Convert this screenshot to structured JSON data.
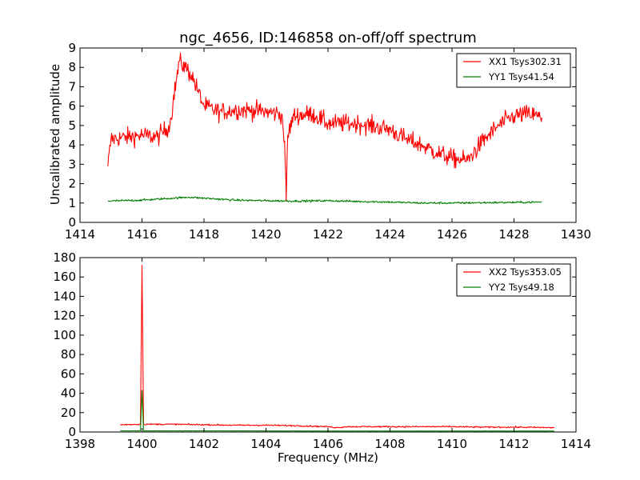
{
  "chart_data": [
    {
      "type": "line",
      "title": "ngc_4656, ID:146858 on-off/off spectrum",
      "xlabel": "",
      "ylabel": "Uncalibrated amplitude",
      "xlim": [
        1414,
        1430
      ],
      "ylim": [
        0,
        9
      ],
      "x_ticks": [
        1414,
        1416,
        1418,
        1420,
        1422,
        1424,
        1426,
        1428,
        1430
      ],
      "y_ticks": [
        0,
        1,
        2,
        3,
        4,
        5,
        6,
        7,
        8,
        9
      ],
      "legend_position": "top-right",
      "x_range": [
        1414.9,
        1428.9
      ],
      "series": [
        {
          "name": "XX1 Tsys302.31",
          "color": "#ff0000",
          "noise": 0.45,
          "points": [
            [
              1414.9,
              2.9
            ],
            [
              1415.0,
              4.3
            ],
            [
              1415.5,
              4.4
            ],
            [
              1416.0,
              4.5
            ],
            [
              1416.5,
              4.4
            ],
            [
              1416.9,
              5.0
            ],
            [
              1417.0,
              6.2
            ],
            [
              1417.2,
              8.3
            ],
            [
              1417.4,
              8.0
            ],
            [
              1417.6,
              7.6
            ],
            [
              1417.8,
              6.8
            ],
            [
              1418.0,
              6.0
            ],
            [
              1418.5,
              5.7
            ],
            [
              1419.0,
              5.8
            ],
            [
              1419.5,
              5.8
            ],
            [
              1420.0,
              5.7
            ],
            [
              1420.5,
              5.6
            ],
            [
              1420.6,
              4.2
            ],
            [
              1420.65,
              1.1
            ],
            [
              1420.7,
              4.5
            ],
            [
              1420.9,
              5.5
            ],
            [
              1421.5,
              5.6
            ],
            [
              1422.0,
              5.1
            ],
            [
              1423.0,
              5.1
            ],
            [
              1424.0,
              4.8
            ],
            [
              1424.5,
              4.3
            ],
            [
              1425.0,
              4.0
            ],
            [
              1425.5,
              3.6
            ],
            [
              1426.0,
              3.3
            ],
            [
              1426.5,
              3.2
            ],
            [
              1427.0,
              4.2
            ],
            [
              1427.5,
              5.0
            ],
            [
              1428.0,
              5.5
            ],
            [
              1428.5,
              5.6
            ],
            [
              1428.9,
              5.4
            ]
          ]
        },
        {
          "name": "YY1 Tsys41.54",
          "color": "#007f00",
          "noise": 0.05,
          "points": [
            [
              1414.9,
              1.1
            ],
            [
              1416.0,
              1.15
            ],
            [
              1417.0,
              1.25
            ],
            [
              1417.5,
              1.3
            ],
            [
              1418.0,
              1.25
            ],
            [
              1419.0,
              1.15
            ],
            [
              1420.0,
              1.12
            ],
            [
              1421.0,
              1.1
            ],
            [
              1422.0,
              1.12
            ],
            [
              1423.0,
              1.08
            ],
            [
              1424.0,
              1.05
            ],
            [
              1425.0,
              1.0
            ],
            [
              1426.0,
              1.0
            ],
            [
              1427.0,
              1.02
            ],
            [
              1428.0,
              1.03
            ],
            [
              1428.9,
              1.05
            ]
          ]
        }
      ]
    },
    {
      "type": "line",
      "title": "",
      "xlabel": "Frequency (MHz)",
      "ylabel": "",
      "xlim": [
        1398,
        1414
      ],
      "ylim": [
        0,
        180
      ],
      "x_ticks": [
        1398,
        1400,
        1402,
        1404,
        1406,
        1408,
        1410,
        1412,
        1414
      ],
      "y_ticks": [
        0,
        20,
        40,
        60,
        80,
        100,
        120,
        140,
        160,
        180
      ],
      "legend_position": "top-right",
      "x_range": [
        1399.3,
        1413.3
      ],
      "series": [
        {
          "name": "XX2 Tsys353.05",
          "color": "#ff0000",
          "noise": 0.7,
          "points": [
            [
              1399.3,
              7.5
            ],
            [
              1399.95,
              8.0
            ],
            [
              1400.0,
              172
            ],
            [
              1400.05,
              8.0
            ],
            [
              1401.0,
              8.0
            ],
            [
              1402.0,
              7.5
            ],
            [
              1403.0,
              7.0
            ],
            [
              1404.0,
              7.0
            ],
            [
              1405.0,
              6.5
            ],
            [
              1406.0,
              5.5
            ],
            [
              1406.3,
              4.5
            ],
            [
              1406.6,
              5.5
            ],
            [
              1407.0,
              5.5
            ],
            [
              1408.0,
              5.5
            ],
            [
              1409.0,
              5.5
            ],
            [
              1410.0,
              5.5
            ],
            [
              1411.0,
              5.0
            ],
            [
              1412.0,
              5.0
            ],
            [
              1413.3,
              4.5
            ]
          ]
        },
        {
          "name": "YY2 Tsys49.18",
          "color": "#007f00",
          "noise": 0.15,
          "points": [
            [
              1399.3,
              1.2
            ],
            [
              1399.95,
              1.2
            ],
            [
              1400.0,
              43
            ],
            [
              1400.05,
              1.2
            ],
            [
              1402.0,
              1.2
            ],
            [
              1404.0,
              1.1
            ],
            [
              1406.0,
              1.0
            ],
            [
              1408.0,
              1.0
            ],
            [
              1410.0,
              1.0
            ],
            [
              1413.3,
              1.0
            ]
          ]
        }
      ]
    }
  ]
}
